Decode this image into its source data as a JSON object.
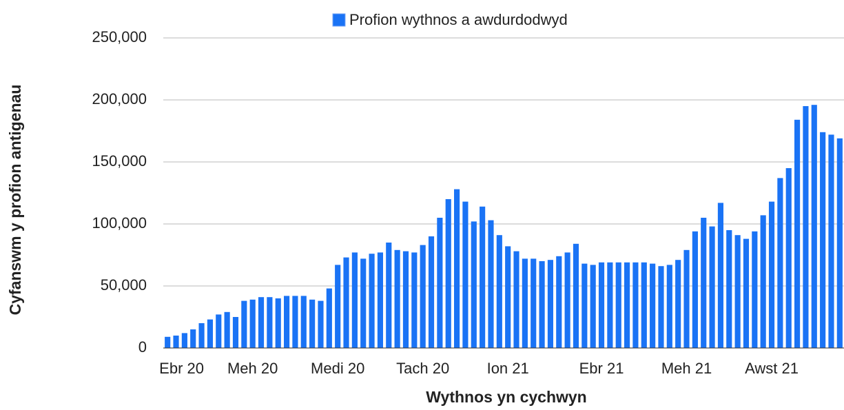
{
  "chart_data": {
    "type": "bar",
    "x_label": "Wythnos yn cychwyn",
    "y_label": "Cyfanswm y profion antigenau",
    "legend": "top",
    "grid": true,
    "categories": [
      "Ebr 20",
      null,
      null,
      null,
      null,
      null,
      null,
      null,
      null,
      null,
      "Meh 20",
      null,
      null,
      null,
      null,
      null,
      null,
      null,
      null,
      null,
      "Medi 20",
      null,
      null,
      null,
      null,
      null,
      null,
      null,
      null,
      null,
      "Tach 20",
      null,
      null,
      null,
      null,
      null,
      null,
      null,
      null,
      null,
      "Ion 21",
      null,
      null,
      null,
      null,
      null,
      null,
      null,
      null,
      null,
      null,
      "Ebr 21",
      null,
      null,
      null,
      null,
      null,
      null,
      null,
      null,
      null,
      "Meh 21",
      null,
      null,
      null,
      null,
      null,
      null,
      null,
      null,
      null,
      "Awst 21",
      null,
      null,
      null,
      null,
      null,
      null,
      null,
      null
    ],
    "series": [
      {
        "name": "Profion wythnos a awdurdodwyd",
        "color": "#1a73f5",
        "values": [
          9000,
          10000,
          12000,
          15000,
          20000,
          23000,
          27000,
          29000,
          25000,
          38000,
          39000,
          41000,
          41000,
          40000,
          42000,
          42000,
          42000,
          39000,
          38000,
          48000,
          67000,
          73000,
          77000,
          72000,
          76000,
          77000,
          85000,
          79000,
          78000,
          77000,
          83000,
          90000,
          105000,
          120000,
          128000,
          118000,
          102000,
          114000,
          103000,
          91000,
          82000,
          78000,
          72000,
          72000,
          70000,
          71000,
          74000,
          77000,
          84000,
          68000,
          67000,
          69000,
          69000,
          69000,
          69000,
          69000,
          69000,
          68000,
          66000,
          67000,
          71000,
          79000,
          94000,
          105000,
          98000,
          117000,
          95000,
          91000,
          88000,
          94000,
          107000,
          118000,
          137000,
          145000,
          184000,
          195000,
          196000,
          174000,
          172000,
          169000
        ]
      }
    ],
    "ylim": [
      0,
      250000
    ],
    "yticks": [
      0,
      {
        "value": 50000,
        "label": "50,000"
      },
      {
        "value": 100000,
        "label": "100,000"
      },
      {
        "value": 150000,
        "label": "150,000"
      },
      {
        "value": 200000,
        "label": "200,000"
      },
      {
        "value": 250000,
        "label": "250,000"
      }
    ]
  }
}
